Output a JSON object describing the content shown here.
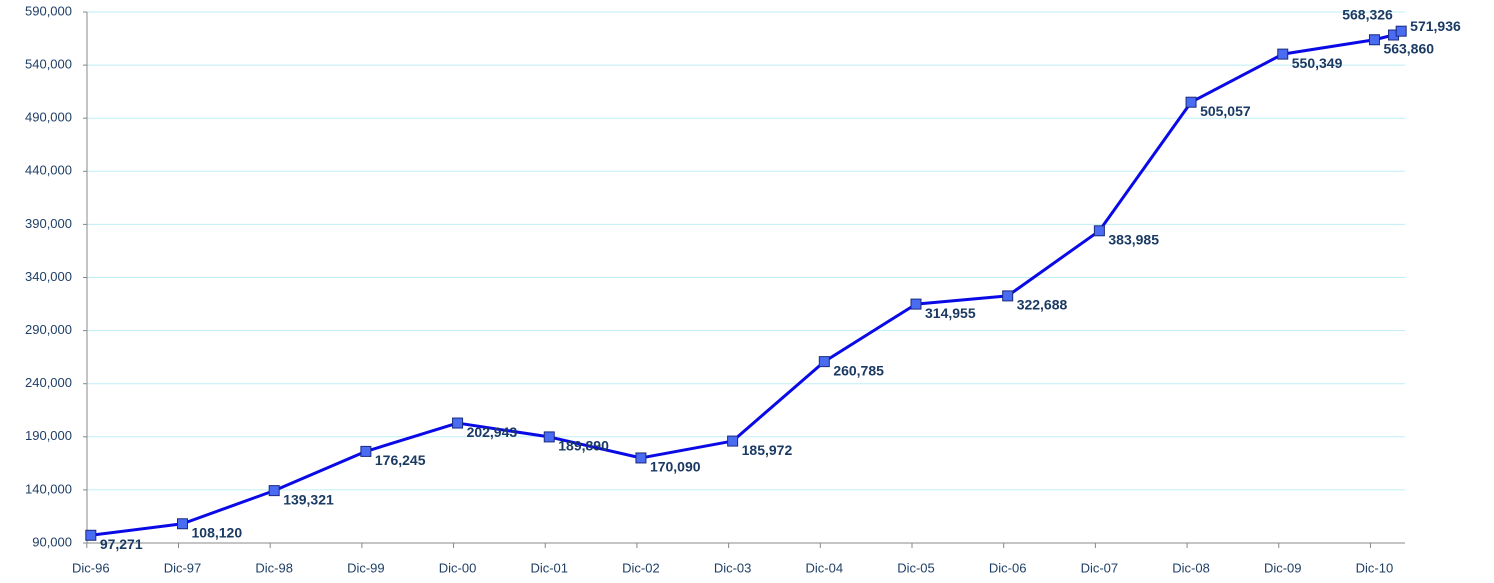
{
  "chart_data": {
    "type": "line",
    "x": [
      0,
      12,
      24,
      36,
      48,
      60,
      72,
      84,
      96,
      108,
      120,
      132,
      144,
      156,
      168,
      170.5,
      171.5
    ],
    "values": [
      97271,
      108120,
      139321,
      176245,
      202943,
      189890,
      170090,
      185972,
      260785,
      314955,
      322688,
      383985,
      505057,
      550349,
      563860,
      568326,
      571936
    ],
    "value_labels": [
      "97,271",
      "108,120",
      "139,321",
      "176,245",
      "202,943",
      "189,890",
      "170,090",
      "185,972",
      "260,785",
      "314,955",
      "322,688",
      "383,985",
      "505,057",
      "550,349",
      "563,860",
      "568,326",
      "571,936"
    ],
    "color": "#0a0ae6",
    "marker_color": "#4a6cf2",
    "xlim": [
      -0.5,
      172
    ],
    "xticks": [
      {
        "value": 0,
        "label": "Dic-96"
      },
      {
        "value": 12,
        "label": "Dic-97"
      },
      {
        "value": 24,
        "label": "Dic-98"
      },
      {
        "value": 36,
        "label": "Dic-99"
      },
      {
        "value": 48,
        "label": "Dic-00"
      },
      {
        "value": 60,
        "label": "Dic-01"
      },
      {
        "value": 72,
        "label": "Dic-02"
      },
      {
        "value": 84,
        "label": "Dic-03"
      },
      {
        "value": 96,
        "label": "Dic-04"
      },
      {
        "value": 108,
        "label": "Dic-05"
      },
      {
        "value": 120,
        "label": "Dic-06"
      },
      {
        "value": 132,
        "label": "Dic-07"
      },
      {
        "value": 144,
        "label": "Dic-08"
      },
      {
        "value": 156,
        "label": "Dic-09"
      },
      {
        "value": 168,
        "label": "Dic-10"
      }
    ],
    "ylim": [
      90000,
      590000
    ],
    "yticks": [
      {
        "value": 90000,
        "label": "90,000"
      },
      {
        "value": 140000,
        "label": "140,000"
      },
      {
        "value": 190000,
        "label": "190,000"
      },
      {
        "value": 240000,
        "label": "240,000"
      },
      {
        "value": 290000,
        "label": "290,000"
      },
      {
        "value": 340000,
        "label": "340,000"
      },
      {
        "value": 390000,
        "label": "390,000"
      },
      {
        "value": 440000,
        "label": "440,000"
      },
      {
        "value": 490000,
        "label": "490,000"
      },
      {
        "value": 540000,
        "label": "540,000"
      },
      {
        "value": 590000,
        "label": "590,000"
      }
    ],
    "grid": true
  }
}
